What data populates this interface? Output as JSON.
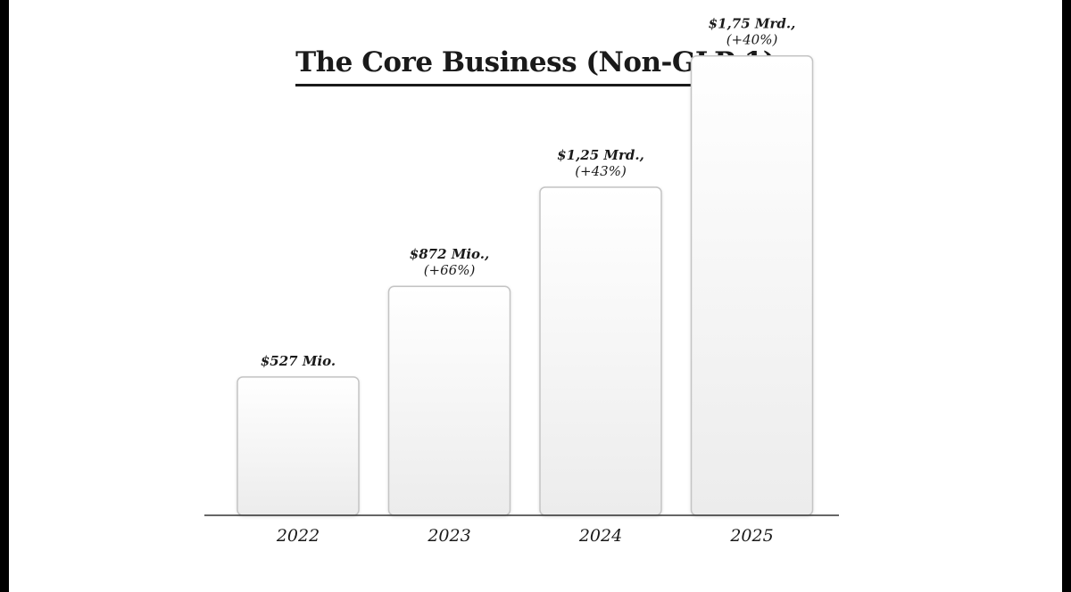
{
  "chart_data": {
    "type": "bar",
    "title": "The Core Business (Non-GLP-1)",
    "categories": [
      "2022",
      "2023",
      "2024",
      "2025"
    ],
    "values": [
      527,
      872,
      1250,
      1750
    ],
    "value_unit": "Mio. $",
    "data_labels": [
      {
        "value_text": "$527 Mio.",
        "growth_text": ""
      },
      {
        "value_text": "$872 Mio.,",
        "growth_text": "(+66%)"
      },
      {
        "value_text": "$1,25 Mrd.,",
        "growth_text": "(+43%)"
      },
      {
        "value_text": "$1,75 Mrd.,",
        "growth_text": "(+40%)"
      }
    ],
    "xlabel": "",
    "ylabel": "",
    "ylim": [
      0,
      1800
    ],
    "grid": false,
    "legend": "none",
    "colors": {
      "bar_fill_top": "#ffffff",
      "bar_fill_bottom": "#ececec",
      "bar_stroke": "#c4c4c4",
      "axis": "#333333",
      "text": "#1a1a1a"
    }
  }
}
